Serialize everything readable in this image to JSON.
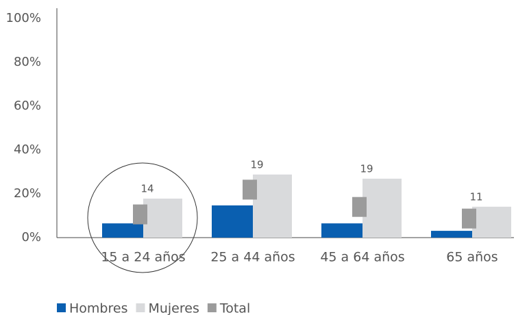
{
  "chart_data": {
    "type": "bar",
    "categories": [
      "15 a 24 años",
      "25 a 44 años",
      "45 a 64 años",
      "65 años"
    ],
    "series": [
      {
        "name": "Hombres",
        "color": "#0a5fb0",
        "values": [
          6.5,
          14.7,
          6.5,
          3.1
        ]
      },
      {
        "name": "Mujeres",
        "color": "#d9dadc",
        "values": [
          17.8,
          28.8,
          26.9,
          14.1
        ]
      },
      {
        "name": "Total",
        "color": "#9b9b9b",
        "marker": "box",
        "values": [
          10.6,
          21.9,
          14.0,
          8.7
        ]
      }
    ],
    "annotations": [
      "14",
      "19",
      "19",
      "11"
    ],
    "ylim": [
      0,
      100
    ],
    "yticks": [
      {
        "value": 0,
        "label": "0%"
      },
      {
        "value": 20,
        "label": "20%"
      },
      {
        "value": 40,
        "label": "40%"
      },
      {
        "value": 60,
        "label": "60%"
      },
      {
        "value": 80,
        "label": "80%"
      },
      {
        "value": 100,
        "label": "100%"
      }
    ],
    "grid": false,
    "legend": "bottom-left"
  }
}
